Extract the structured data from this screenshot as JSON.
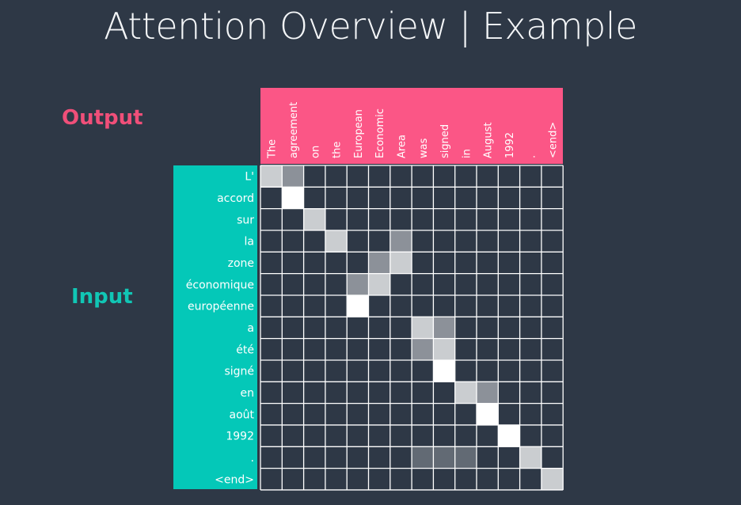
{
  "title": "Attention Overview | Example",
  "output_label": "Output",
  "input_label": "Input",
  "colors": {
    "background": "#2e3846",
    "output_accent": "#fb5686",
    "input_accent": "#04c8b8",
    "grid_line": "#ffffff",
    "weight_color": "#ffffff"
  },
  "output_tokens": [
    "The",
    "agreement",
    "on",
    "the",
    "European",
    "Economic",
    "Area",
    "was",
    "signed",
    "in",
    "August",
    "1992",
    ".",
    "<end>"
  ],
  "input_tokens": [
    "L'",
    "accord",
    "sur",
    "la",
    "zone",
    "économique",
    "européenne",
    "a",
    "été",
    "signé",
    "en",
    "août",
    "1992",
    ".",
    "<end>"
  ],
  "chart_data": {
    "type": "heatmap",
    "x_labels": [
      "The",
      "agreement",
      "on",
      "the",
      "European",
      "Economic",
      "Area",
      "was",
      "signed",
      "in",
      "August",
      "1992",
      ".",
      "<end>"
    ],
    "y_labels": [
      "L'",
      "accord",
      "sur",
      "la",
      "zone",
      "économique",
      "européenne",
      "a",
      "été",
      "signé",
      "en",
      "août",
      "1992",
      ".",
      "<end>"
    ],
    "weights": [
      [
        0.75,
        0.45,
        0,
        0,
        0,
        0,
        0,
        0,
        0,
        0,
        0,
        0,
        0,
        0
      ],
      [
        0,
        1.0,
        0,
        0,
        0,
        0,
        0,
        0,
        0,
        0,
        0,
        0,
        0,
        0
      ],
      [
        0,
        0,
        0.75,
        0,
        0,
        0,
        0,
        0,
        0,
        0,
        0,
        0,
        0,
        0
      ],
      [
        0,
        0,
        0,
        0.75,
        0,
        0,
        0.45,
        0,
        0,
        0,
        0,
        0,
        0,
        0
      ],
      [
        0,
        0,
        0,
        0,
        0,
        0.45,
        0.75,
        0,
        0,
        0,
        0,
        0,
        0,
        0
      ],
      [
        0,
        0,
        0,
        0,
        0.45,
        0.75,
        0,
        0,
        0,
        0,
        0,
        0,
        0,
        0
      ],
      [
        0,
        0,
        0,
        0,
        1.0,
        0,
        0,
        0,
        0,
        0,
        0,
        0,
        0,
        0
      ],
      [
        0,
        0,
        0,
        0,
        0,
        0,
        0,
        0.75,
        0.45,
        0,
        0,
        0,
        0,
        0
      ],
      [
        0,
        0,
        0,
        0,
        0,
        0,
        0,
        0.45,
        0.75,
        0,
        0,
        0,
        0,
        0
      ],
      [
        0,
        0,
        0,
        0,
        0,
        0,
        0,
        0,
        1.0,
        0,
        0,
        0,
        0,
        0
      ],
      [
        0,
        0,
        0,
        0,
        0,
        0,
        0,
        0,
        0,
        0.75,
        0.45,
        0,
        0,
        0
      ],
      [
        0,
        0,
        0,
        0,
        0,
        0,
        0,
        0,
        0,
        0,
        1.0,
        0,
        0,
        0
      ],
      [
        0,
        0,
        0,
        0,
        0,
        0,
        0,
        0,
        0,
        0,
        0,
        1.0,
        0,
        0
      ],
      [
        0,
        0,
        0,
        0,
        0,
        0,
        0,
        0.25,
        0.25,
        0.25,
        0,
        0,
        0.75,
        0
      ],
      [
        0,
        0,
        0,
        0,
        0,
        0,
        0,
        0,
        0,
        0,
        0,
        0,
        0,
        0.75
      ]
    ]
  }
}
